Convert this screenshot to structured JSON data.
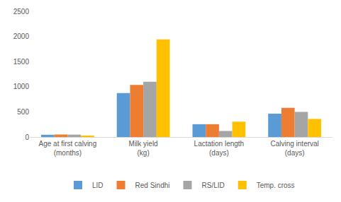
{
  "chart_data": {
    "type": "bar",
    "categories": [
      "Age at first calving (months)",
      "Milk yield (kg)",
      "Lactation length (days)",
      "Calving interval (days)"
    ],
    "series": [
      {
        "name": "LID",
        "color": "#5b9bd5",
        "values": [
          45,
          875,
          255,
          465
        ]
      },
      {
        "name": "Red Sindhi",
        "color": "#ed7d31",
        "values": [
          50,
          1035,
          255,
          580
        ]
      },
      {
        "name": "RS/LID",
        "color": "#a5a5a5",
        "values": [
          48,
          1100,
          120,
          500
        ]
      },
      {
        "name": "Temp. cross",
        "color": "#ffc000",
        "values": [
          30,
          1940,
          305,
          360
        ]
      }
    ],
    "ylim": [
      0,
      2500
    ],
    "yticks": [
      0,
      500,
      1000,
      1500,
      2000,
      2500
    ],
    "grid": false,
    "legend": "bottom"
  }
}
